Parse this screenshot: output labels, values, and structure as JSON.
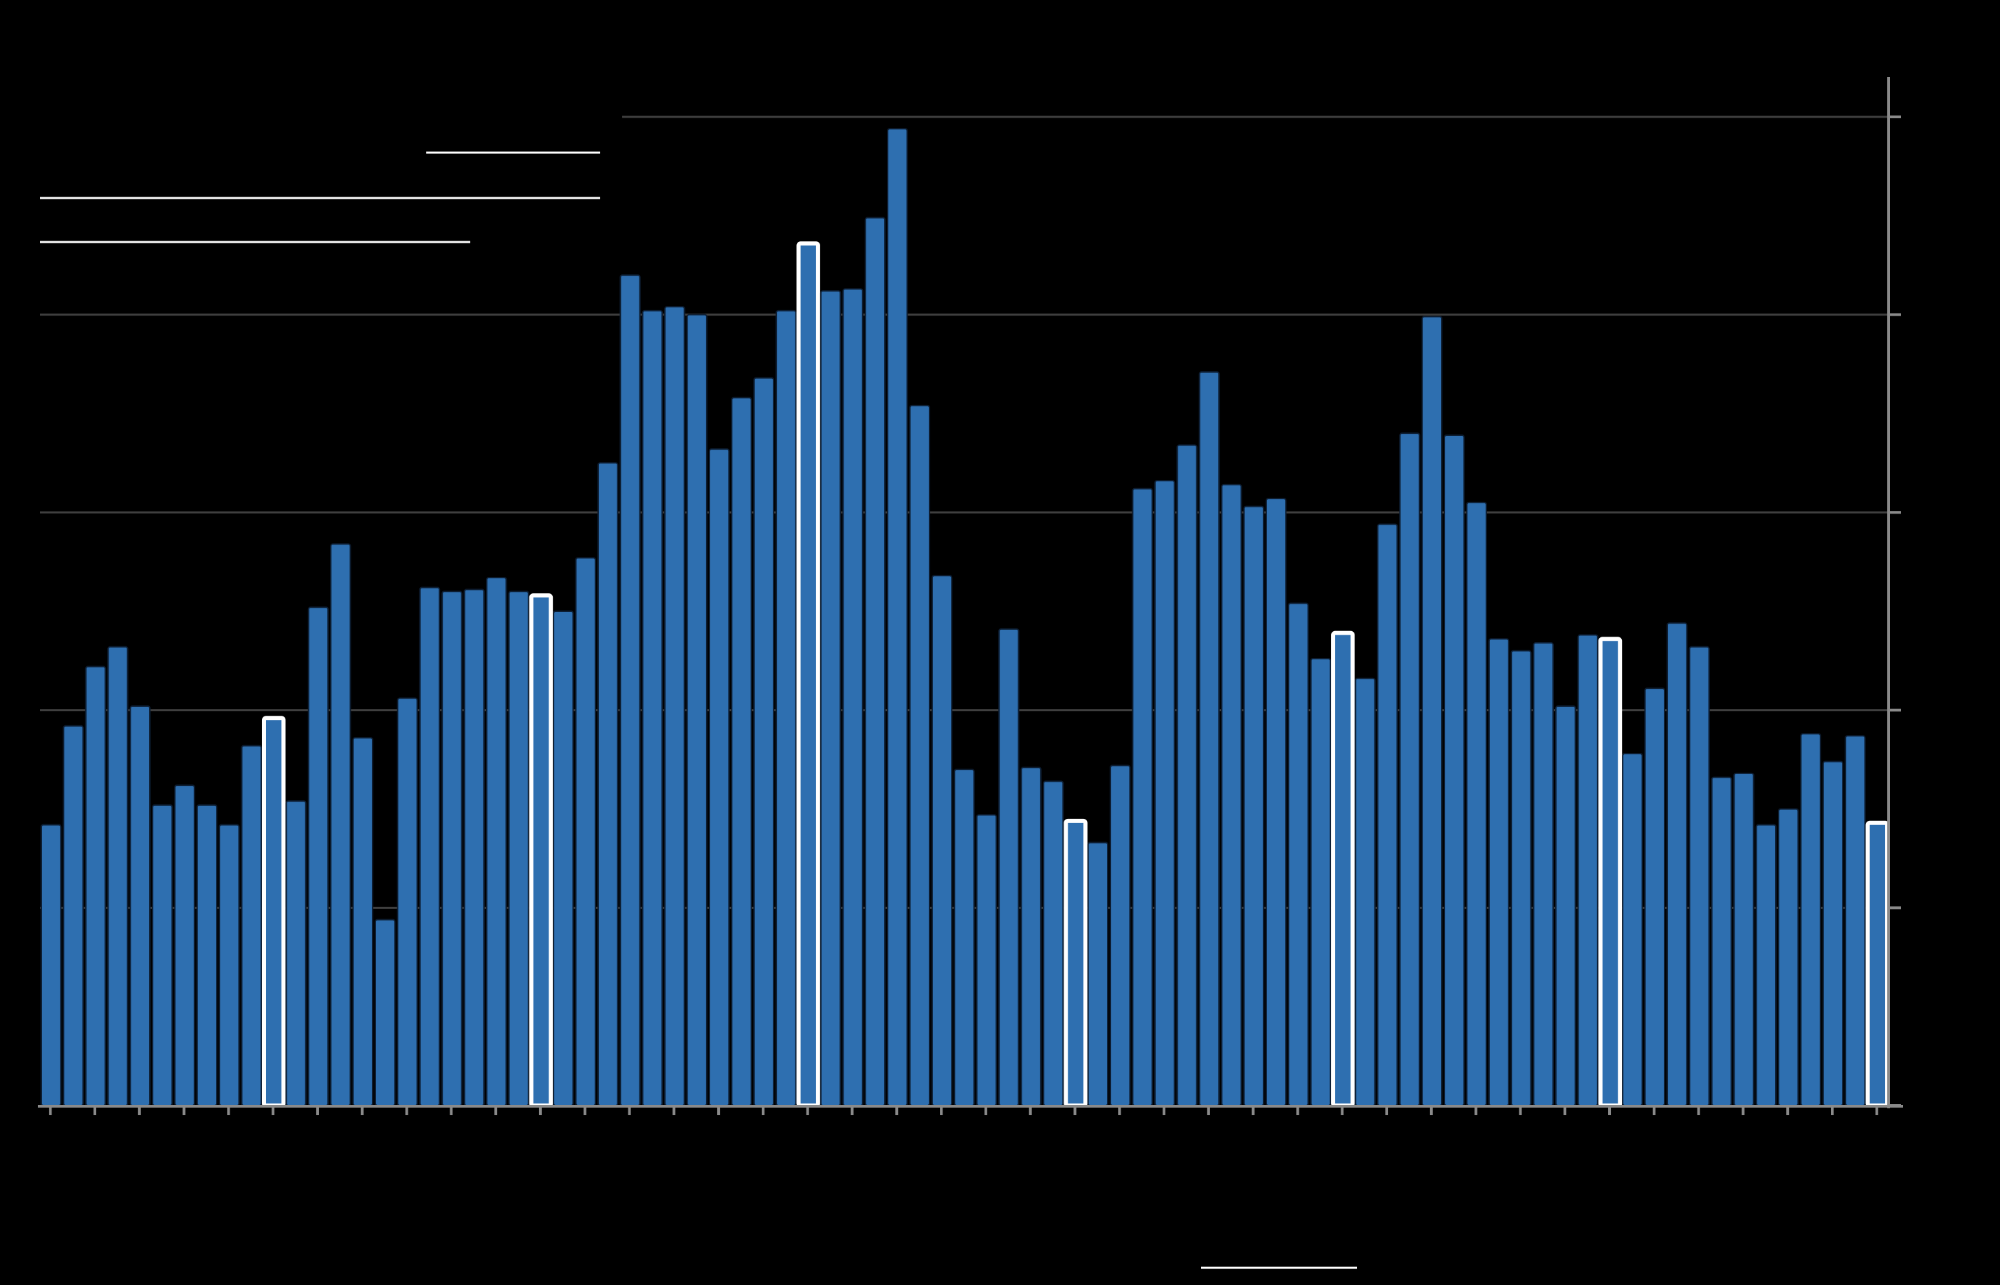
{
  "colors": {
    "background": "#000000",
    "bar_fill": "#2E6FB0",
    "bar_outline": "#0D1E33",
    "highlight_outline": "#FFFFFF",
    "gridline": "#3F3F3F",
    "axis": "#8A8A8A",
    "legend_line": "#FFFFFF"
  },
  "chart_data": {
    "type": "bar",
    "title": "",
    "subtitle": "",
    "xlabel": "",
    "ylabel": "",
    "ylim": [
      0,
      25
    ],
    "y_ticks": [
      0,
      5,
      10,
      15,
      20,
      25
    ],
    "grid": "horizontal",
    "y_axis_side": "right",
    "highlighted_indices": [
      10,
      22,
      34,
      46,
      58,
      70,
      82
    ],
    "values": [
      7.1,
      9.6,
      11.1,
      11.6,
      10.1,
      7.6,
      8.1,
      7.6,
      7.1,
      9.1,
      9.8,
      7.7,
      12.6,
      14.2,
      9.3,
      4.7,
      10.3,
      13.1,
      13.0,
      13.05,
      13.35,
      13.0,
      12.9,
      12.5,
      13.85,
      16.25,
      21.0,
      20.1,
      20.2,
      20.0,
      16.6,
      17.9,
      18.4,
      20.1,
      21.8,
      20.6,
      20.65,
      22.45,
      24.7,
      17.7,
      13.4,
      8.5,
      7.35,
      12.05,
      8.55,
      8.2,
      7.2,
      6.65,
      8.6,
      15.6,
      15.8,
      16.7,
      18.55,
      15.7,
      15.15,
      15.35,
      12.7,
      11.3,
      11.95,
      10.8,
      14.7,
      17.0,
      19.95,
      16.95,
      15.25,
      11.8,
      11.5,
      11.7,
      10.1,
      11.9,
      11.8,
      8.9,
      10.55,
      12.2,
      11.6,
      8.3,
      8.4,
      7.1,
      7.5,
      9.4,
      8.7,
      9.35,
      7.15
    ]
  }
}
